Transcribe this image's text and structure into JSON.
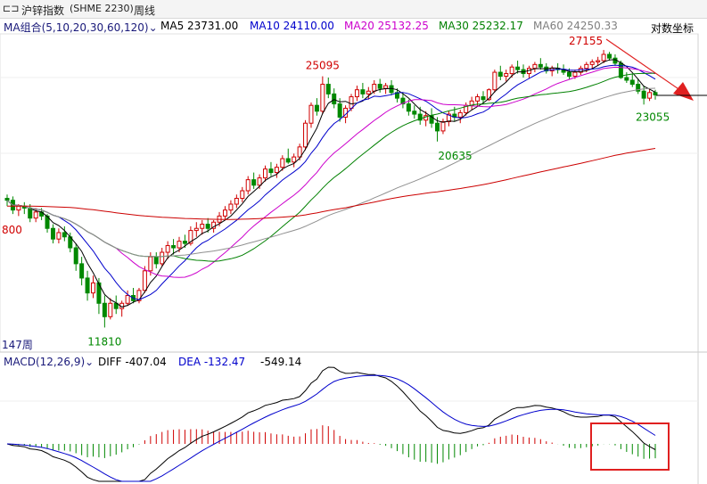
{
  "title_bar": {
    "icon": "chart-window-icon",
    "instrument": "沪锌指数",
    "code": "(SHME 2230)",
    "period": "周线"
  },
  "ma_legend": {
    "group_label": "MA组合(5,10,20,30,60,120)",
    "items": [
      {
        "label": "MA5 23731.00",
        "color": "#000000"
      },
      {
        "label": "MA10 24110.00",
        "color": "#0000cc"
      },
      {
        "label": "MA20 25132.25",
        "color": "#cc00cc"
      },
      {
        "label": "MA30 25232.17",
        "color": "#008000"
      },
      {
        "label": "MA60 24250.33",
        "color": "#808080"
      }
    ],
    "log_scale_label": "对数坐标"
  },
  "macd_legend": {
    "name": "MACD(12,26,9)",
    "diff": "DIFF -407.04",
    "dea": "DEA -132.47",
    "macd": "-549.14"
  },
  "annotations": {
    "peak_27155": "27155",
    "peak_25095": "25095",
    "low_20635": "20635",
    "low_23055": "23055",
    "low_11810": "11810",
    "left_800": "800",
    "weeks": "147周"
  },
  "chart_data": {
    "type": "candlestick",
    "period": "weekly",
    "scale": "log",
    "ylim": [
      11000,
      28500
    ],
    "candles": [
      [
        17400,
        17600,
        17000,
        17300
      ],
      [
        17300,
        17500,
        16600,
        16800
      ],
      [
        16800,
        17100,
        16500,
        17000
      ],
      [
        17000,
        17200,
        16600,
        16900
      ],
      [
        16900,
        17100,
        16200,
        16400
      ],
      [
        16400,
        16900,
        16200,
        16700
      ],
      [
        16700,
        16900,
        16300,
        16500
      ],
      [
        16500,
        16600,
        15700,
        15900
      ],
      [
        15900,
        16100,
        15200,
        15400
      ],
      [
        15400,
        15900,
        15200,
        15700
      ],
      [
        15700,
        16000,
        15300,
        15500
      ],
      [
        15500,
        15700,
        14800,
        15000
      ],
      [
        15000,
        15200,
        14000,
        14300
      ],
      [
        14300,
        14600,
        13400,
        13700
      ],
      [
        13700,
        14000,
        12800,
        13100
      ],
      [
        13100,
        13800,
        12900,
        13500
      ],
      [
        13500,
        13700,
        12300,
        12700
      ],
      [
        12700,
        13000,
        11810,
        12200
      ],
      [
        12200,
        12900,
        12100,
        12700
      ],
      [
        12700,
        13000,
        12300,
        12500
      ],
      [
        12500,
        12800,
        12200,
        12700
      ],
      [
        12700,
        13200,
        12600,
        13000
      ],
      [
        13000,
        13300,
        12700,
        12800
      ],
      [
        12800,
        13300,
        12700,
        13200
      ],
      [
        13200,
        14200,
        13100,
        14000
      ],
      [
        14000,
        14800,
        13800,
        14600
      ],
      [
        14600,
        14800,
        14100,
        14300
      ],
      [
        14300,
        15000,
        14200,
        14800
      ],
      [
        14800,
        15300,
        14500,
        15100
      ],
      [
        15100,
        15400,
        14700,
        15000
      ],
      [
        15000,
        15500,
        14800,
        15300
      ],
      [
        15300,
        15600,
        15000,
        15200
      ],
      [
        15200,
        16000,
        15100,
        15800
      ],
      [
        15800,
        16200,
        15500,
        15900
      ],
      [
        15900,
        16300,
        15600,
        16100
      ],
      [
        16100,
        16400,
        15700,
        15900
      ],
      [
        15900,
        16300,
        15700,
        16200
      ],
      [
        16200,
        16700,
        16000,
        16500
      ],
      [
        16500,
        17000,
        16300,
        16800
      ],
      [
        16800,
        17300,
        16600,
        17100
      ],
      [
        17100,
        17600,
        16900,
        17400
      ],
      [
        17400,
        18000,
        17200,
        17800
      ],
      [
        17800,
        18600,
        17600,
        18400
      ],
      [
        18400,
        18800,
        17900,
        18100
      ],
      [
        18100,
        18700,
        17900,
        18500
      ],
      [
        18500,
        19200,
        18300,
        19000
      ],
      [
        19000,
        19400,
        18600,
        18800
      ],
      [
        18800,
        19300,
        18500,
        19100
      ],
      [
        19100,
        19800,
        18900,
        19600
      ],
      [
        19600,
        20200,
        19300,
        19400
      ],
      [
        19400,
        19900,
        19100,
        19700
      ],
      [
        19700,
        20500,
        19500,
        20300
      ],
      [
        20300,
        22000,
        20100,
        21800
      ],
      [
        21800,
        23200,
        21500,
        23000
      ],
      [
        23000,
        23500,
        22300,
        22600
      ],
      [
        22600,
        25095,
        22400,
        24500
      ],
      [
        24500,
        25000,
        23500,
        23800
      ],
      [
        23800,
        24200,
        22800,
        23100
      ],
      [
        23100,
        23500,
        21900,
        22200
      ],
      [
        22200,
        23000,
        21800,
        22800
      ],
      [
        22800,
        23800,
        22600,
        23600
      ],
      [
        23600,
        24400,
        23300,
        24100
      ],
      [
        24100,
        24600,
        23500,
        23800
      ],
      [
        23800,
        24300,
        23400,
        24000
      ],
      [
        24000,
        24800,
        23800,
        24500
      ],
      [
        24500,
        24900,
        23900,
        24200
      ],
      [
        24200,
        24600,
        23800,
        24400
      ],
      [
        24400,
        24800,
        23700,
        23900
      ],
      [
        23900,
        24200,
        23200,
        23500
      ],
      [
        23500,
        23900,
        22800,
        23100
      ],
      [
        23100,
        23400,
        22300,
        22600
      ],
      [
        22600,
        23000,
        22100,
        22400
      ],
      [
        22400,
        22900,
        21700,
        22000
      ],
      [
        22000,
        22600,
        21600,
        22300
      ],
      [
        22300,
        22800,
        21500,
        21800
      ],
      [
        21800,
        22200,
        20635,
        21300
      ],
      [
        21300,
        22100,
        21100,
        21900
      ],
      [
        21900,
        22600,
        21600,
        22400
      ],
      [
        22400,
        22900,
        21900,
        22200
      ],
      [
        22200,
        22700,
        21800,
        22500
      ],
      [
        22500,
        23200,
        22300,
        23000
      ],
      [
        23000,
        23600,
        22700,
        23300
      ],
      [
        23300,
        23800,
        22900,
        23600
      ],
      [
        23600,
        24000,
        23100,
        23400
      ],
      [
        23400,
        24200,
        23300,
        24100
      ],
      [
        24100,
        25600,
        23900,
        25400
      ],
      [
        25400,
        25900,
        24800,
        25100
      ],
      [
        25100,
        25600,
        24700,
        25300
      ],
      [
        25300,
        26000,
        25000,
        25800
      ],
      [
        25800,
        26300,
        25300,
        25600
      ],
      [
        25600,
        26000,
        25000,
        25300
      ],
      [
        25300,
        25900,
        24900,
        25700
      ],
      [
        25700,
        26200,
        25400,
        26000
      ],
      [
        26000,
        26500,
        25600,
        25800
      ],
      [
        25800,
        26100,
        25300,
        25500
      ],
      [
        25500,
        25900,
        25100,
        25700
      ],
      [
        25700,
        26100,
        25300,
        25600
      ],
      [
        25600,
        26000,
        25200,
        25400
      ],
      [
        25400,
        25700,
        24900,
        25100
      ],
      [
        25100,
        25600,
        24900,
        25400
      ],
      [
        25400,
        25900,
        25200,
        25700
      ],
      [
        25700,
        26200,
        25400,
        26000
      ],
      [
        26000,
        26400,
        25700,
        26200
      ],
      [
        26200,
        26600,
        25900,
        26300
      ],
      [
        26300,
        27155,
        26100,
        26800
      ],
      [
        26800,
        27000,
        26300,
        26500
      ],
      [
        26500,
        26800,
        25900,
        26100
      ],
      [
        26100,
        26300,
        24900,
        25000
      ],
      [
        25000,
        25400,
        24600,
        24800
      ],
      [
        24800,
        25300,
        24300,
        24500
      ],
      [
        24500,
        24900,
        23800,
        24000
      ],
      [
        24000,
        24400,
        23055,
        23500
      ],
      [
        23500,
        24200,
        23300,
        23900
      ],
      [
        23900,
        24100,
        23400,
        23731
      ]
    ],
    "ma_series": [
      {
        "name": "MA5",
        "last": 23731.0
      },
      {
        "name": "MA10",
        "last": 24110.0
      },
      {
        "name": "MA20",
        "last": 25132.25
      },
      {
        "name": "MA30",
        "last": 25232.17
      },
      {
        "name": "MA60",
        "last": 24250.33
      },
      {
        "name": "MA120"
      }
    ],
    "macd": {
      "diff_last": -407.04,
      "dea_last": -132.47,
      "macd_last": -549.14
    }
  }
}
